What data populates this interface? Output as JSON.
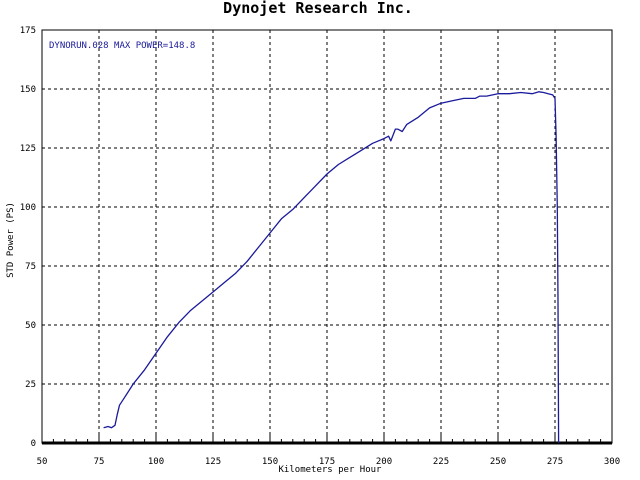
{
  "chart_data": {
    "type": "line",
    "title": "Dynojet Research Inc.",
    "annotation": "DYNORUN.028 MAX POWER=148.8",
    "xlabel": "Kilometers per Hour",
    "ylabel": "STD Power (PS)",
    "xlim": [
      50,
      300
    ],
    "ylim": [
      0,
      175
    ],
    "x_ticks": [
      50,
      75,
      100,
      125,
      150,
      175,
      200,
      225,
      250,
      275,
      300
    ],
    "y_ticks": [
      0,
      25,
      50,
      75,
      100,
      125,
      150,
      175
    ],
    "grid": true,
    "series": [
      {
        "color": "#1a1a9c",
        "x": [
          77,
          79,
          80.5,
          82,
          83,
          84,
          86,
          90,
          95,
          100,
          105,
          110,
          115,
          120,
          125,
          130,
          135,
          140,
          145,
          150,
          155,
          160,
          165,
          170,
          175,
          180,
          185,
          190,
          195,
          200,
          202,
          203,
          205,
          206,
          208,
          210,
          215,
          220,
          225,
          230,
          235,
          240,
          242,
          245,
          250,
          255,
          260,
          265,
          268,
          270,
          272,
          274,
          275,
          275.5,
          276,
          276.3,
          276.6
        ],
        "y": [
          6.5,
          7,
          6.5,
          7.5,
          12,
          16,
          19,
          25,
          31,
          38,
          45,
          51,
          56,
          60,
          64,
          68,
          72,
          77,
          83,
          89,
          95,
          99,
          104,
          109,
          114,
          118,
          121,
          124,
          127,
          129,
          130,
          128,
          133,
          133,
          132,
          135,
          138,
          142,
          144,
          145,
          146,
          146,
          147,
          147,
          148,
          148,
          148.5,
          148,
          148.8,
          148.5,
          148,
          147.5,
          146,
          130,
          100,
          60,
          0
        ]
      }
    ]
  }
}
